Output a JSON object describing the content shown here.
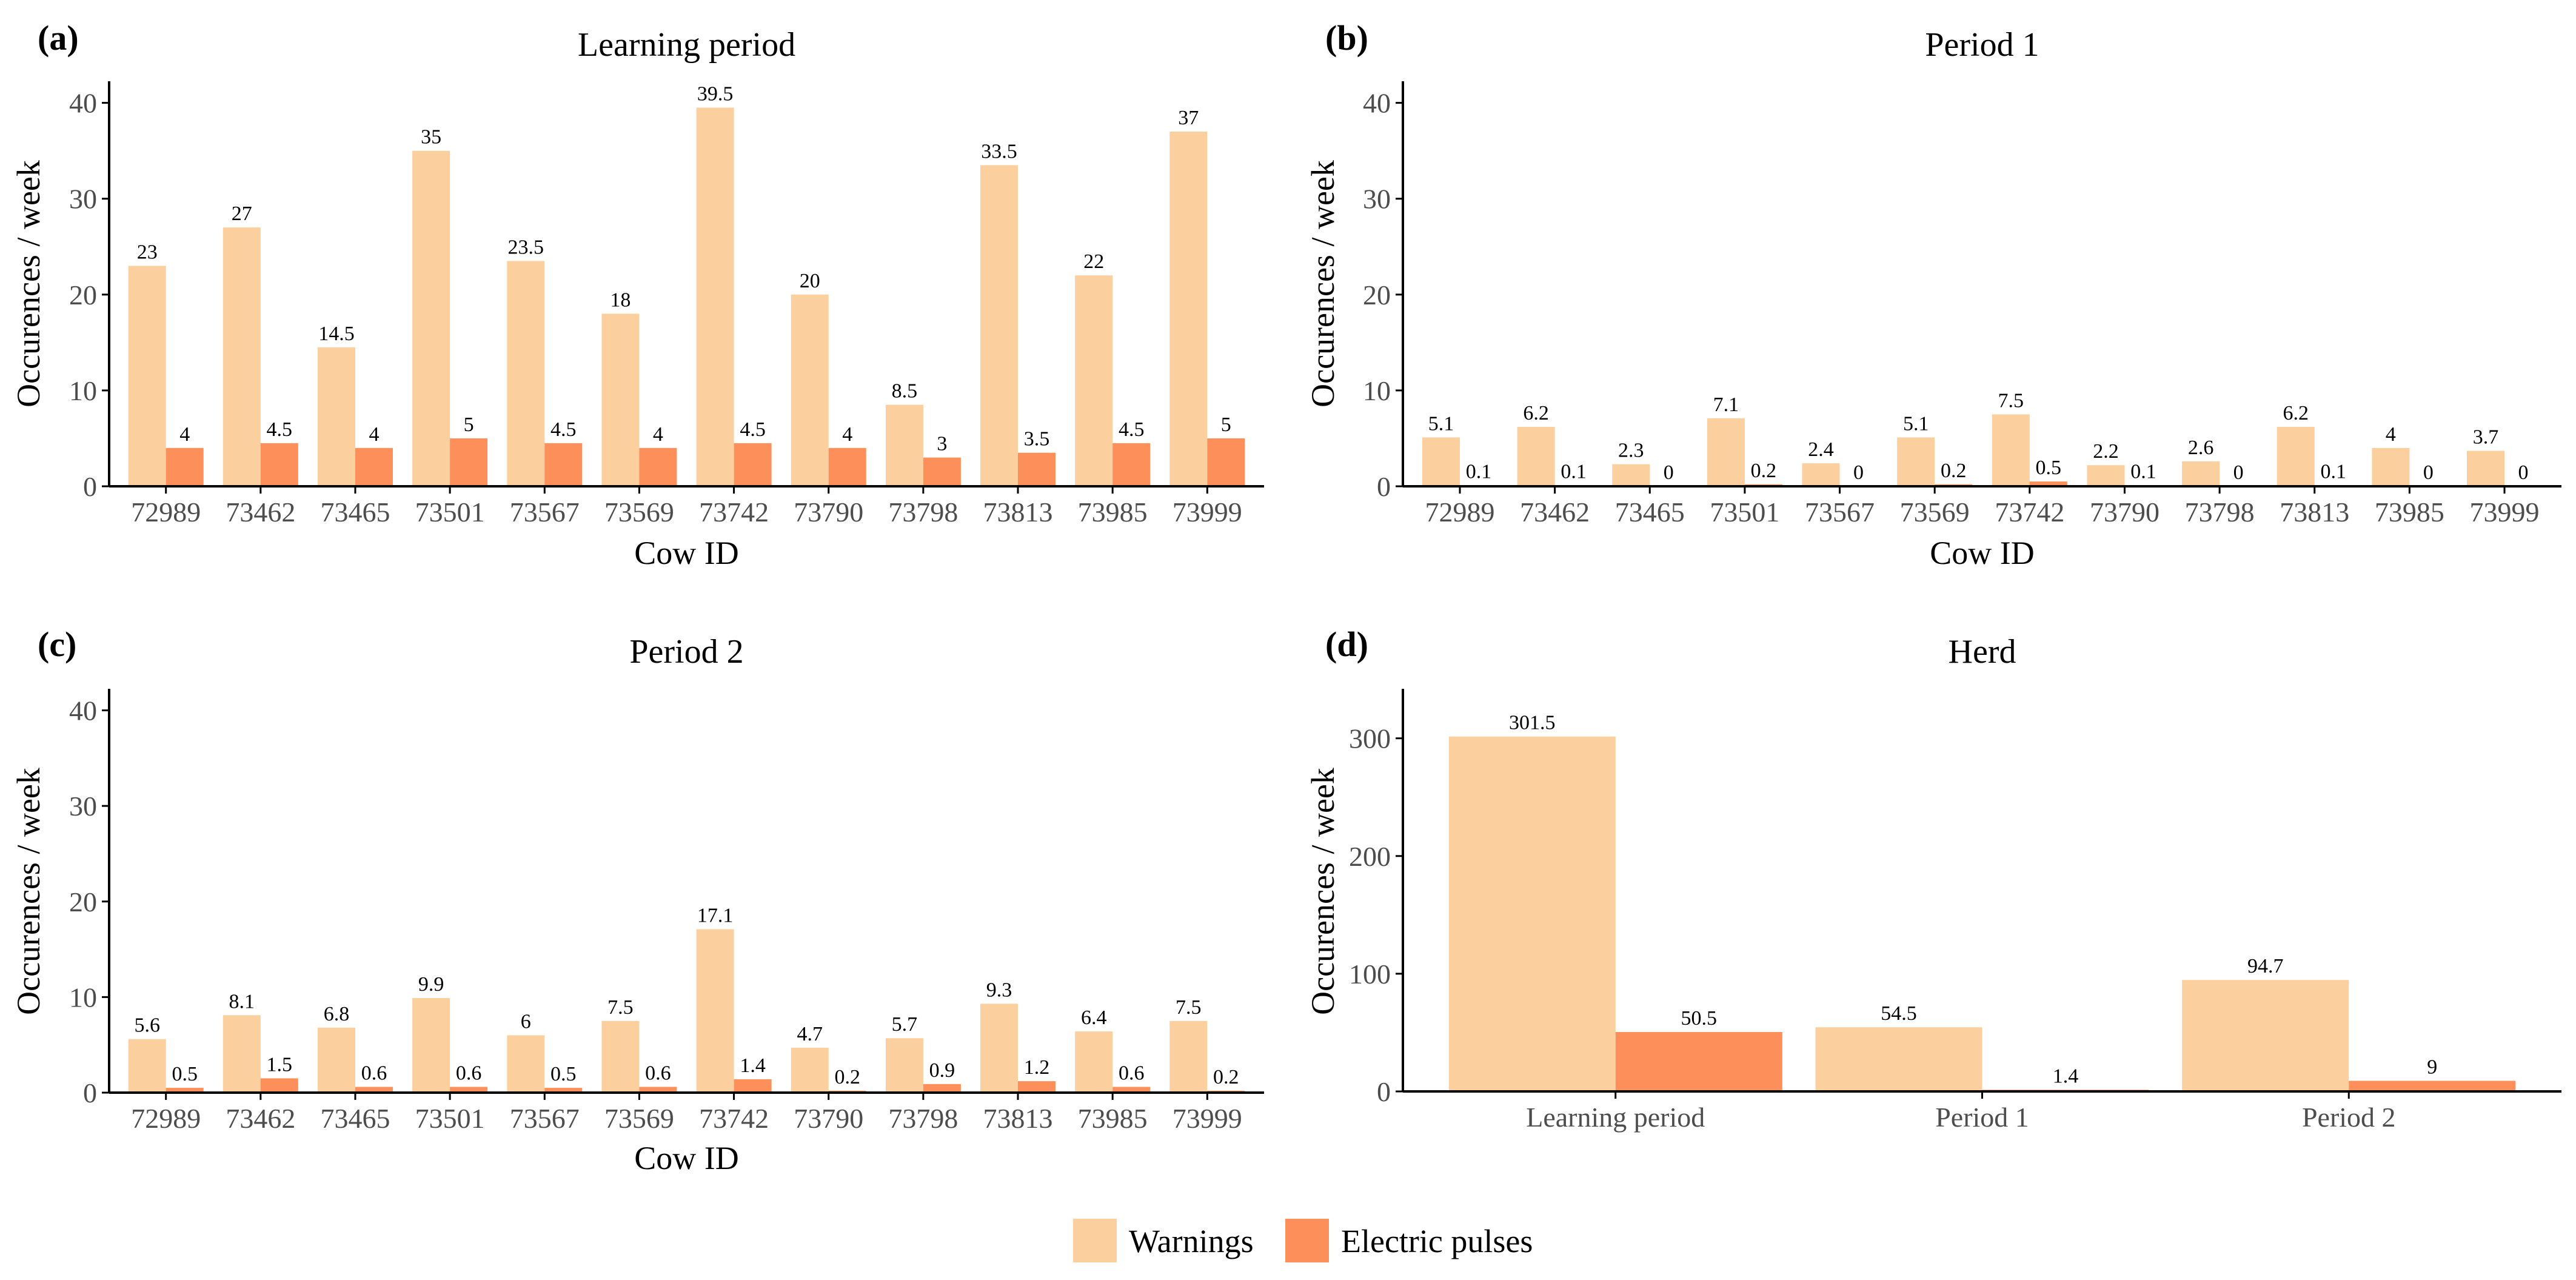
{
  "colors": {
    "warnings": "#fccf9e",
    "pulses": "#fc8f5a",
    "axis": "#000000",
    "tick_text": "#4d4d4d"
  },
  "legend": [
    {
      "key": "warnings",
      "label": "Warnings"
    },
    {
      "key": "pulses",
      "label": "Electric pulses"
    }
  ],
  "chart_data": [
    {
      "tag": "(a)",
      "title": "Learning period",
      "type": "bar",
      "xlabel": "Cow ID",
      "ylabel": "Occurences / week",
      "ylim": [
        0,
        42
      ],
      "yticks": [
        0,
        10,
        20,
        30,
        40
      ],
      "categories": [
        "72989",
        "73462",
        "73465",
        "73501",
        "73567",
        "73569",
        "73742",
        "73790",
        "73798",
        "73813",
        "73985",
        "73999"
      ],
      "series": [
        {
          "name": "Warnings",
          "key": "warnings",
          "values": [
            23,
            27,
            14.5,
            35,
            23.5,
            18,
            39.5,
            20,
            8.5,
            33.5,
            22,
            37
          ],
          "labels": [
            "23",
            "27",
            "14.5",
            "35",
            "23.5",
            "18",
            "39.5",
            "20",
            "8.5",
            "33.5",
            "22",
            "37"
          ]
        },
        {
          "name": "Electric pulses",
          "key": "pulses",
          "values": [
            4,
            4.5,
            4,
            5,
            4.5,
            4,
            4.5,
            4,
            3,
            3.5,
            4.5,
            5
          ],
          "labels": [
            "4",
            "4.5",
            "4",
            "5",
            "4.5",
            "4",
            "4.5",
            "4",
            "3",
            "3.5",
            "4.5",
            "5"
          ]
        }
      ]
    },
    {
      "tag": "(b)",
      "title": "Period 1",
      "type": "bar",
      "xlabel": "Cow ID",
      "ylabel": "Occurences / week",
      "ylim": [
        0,
        42
      ],
      "yticks": [
        0,
        10,
        20,
        30,
        40
      ],
      "categories": [
        "72989",
        "73462",
        "73465",
        "73501",
        "73567",
        "73569",
        "73742",
        "73790",
        "73798",
        "73813",
        "73985",
        "73999"
      ],
      "series": [
        {
          "name": "Warnings",
          "key": "warnings",
          "values": [
            5.1,
            6.2,
            2.3,
            7.1,
            2.4,
            5.1,
            7.5,
            2.2,
            2.6,
            6.2,
            4,
            3.7
          ],
          "labels": [
            "5.1",
            "6.2",
            "2.3",
            "7.1",
            "2.4",
            "5.1",
            "7.5",
            "2.2",
            "2.6",
            "6.2",
            "4",
            "3.7"
          ]
        },
        {
          "name": "Electric pulses",
          "key": "pulses",
          "values": [
            0.1,
            0.1,
            0,
            0.2,
            0,
            0.2,
            0.5,
            0.1,
            0,
            0.1,
            0,
            0
          ],
          "labels": [
            "0.1",
            "0.1",
            "0",
            "0.2",
            "0",
            "0.2",
            "0.5",
            "0.1",
            "0",
            "0.1",
            "0",
            "0"
          ]
        }
      ]
    },
    {
      "tag": "(c)",
      "title": "Period 2",
      "type": "bar",
      "xlabel": "Cow ID",
      "ylabel": "Occurences / week",
      "ylim": [
        0,
        42
      ],
      "yticks": [
        0,
        10,
        20,
        30,
        40
      ],
      "categories": [
        "72989",
        "73462",
        "73465",
        "73501",
        "73567",
        "73569",
        "73742",
        "73790",
        "73798",
        "73813",
        "73985",
        "73999"
      ],
      "series": [
        {
          "name": "Warnings",
          "key": "warnings",
          "values": [
            5.6,
            8.1,
            6.8,
            9.9,
            6,
            7.5,
            17.1,
            4.7,
            5.7,
            9.3,
            6.4,
            7.5
          ],
          "labels": [
            "5.6",
            "8.1",
            "6.8",
            "9.9",
            "6",
            "7.5",
            "17.1",
            "4.7",
            "5.7",
            "9.3",
            "6.4",
            "7.5"
          ]
        },
        {
          "name": "Electric pulses",
          "key": "pulses",
          "values": [
            0.5,
            1.5,
            0.6,
            0.6,
            0.5,
            0.6,
            1.4,
            0.2,
            0.9,
            1.2,
            0.6,
            0.2
          ],
          "labels": [
            "0.5",
            "1.5",
            "0.6",
            "0.6",
            "0.5",
            "0.6",
            "1.4",
            "0.2",
            "0.9",
            "1.2",
            "0.6",
            "0.2"
          ]
        }
      ]
    },
    {
      "tag": "(d)",
      "title": "Herd",
      "type": "bar",
      "xlabel": "",
      "ylabel": "Occurences / week",
      "ylim": [
        0,
        340
      ],
      "yticks": [
        0,
        100,
        200,
        300
      ],
      "categories": [
        "Learning period",
        "Period 1",
        "Period 2"
      ],
      "series": [
        {
          "name": "Warnings",
          "key": "warnings",
          "values": [
            301.5,
            54.5,
            94.7
          ],
          "labels": [
            "301.5",
            "54.5",
            "94.7"
          ]
        },
        {
          "name": "Electric pulses",
          "key": "pulses",
          "values": [
            50.5,
            1.4,
            9
          ],
          "labels": [
            "50.5",
            "1.4",
            "9"
          ]
        }
      ]
    }
  ]
}
